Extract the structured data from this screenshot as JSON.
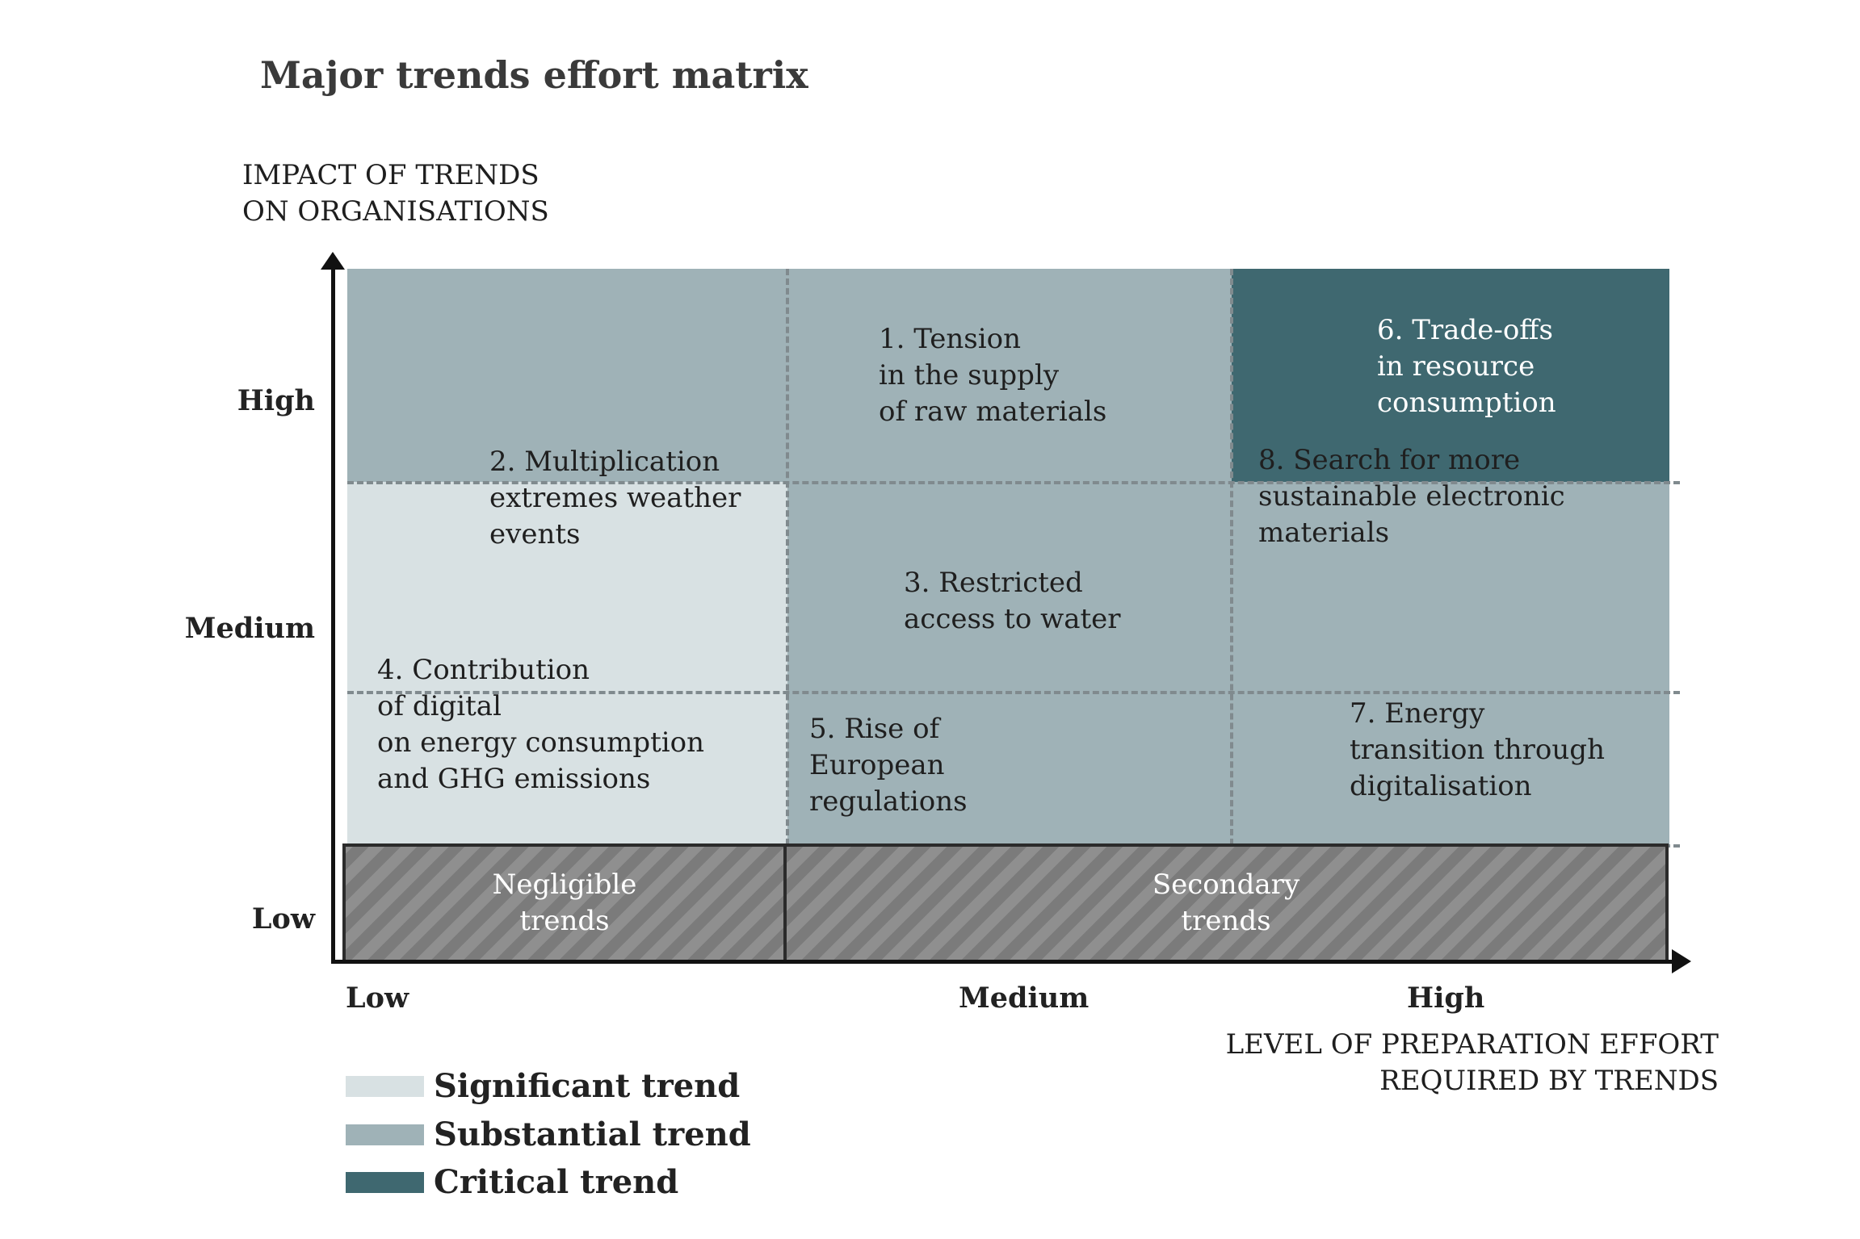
{
  "title": "Major trends effort matrix",
  "y_axis": {
    "title_lines": [
      "IMPACT OF TRENDS",
      "ON ORGANISATIONS"
    ],
    "ticks": [
      "High",
      "Medium",
      "Low"
    ]
  },
  "x_axis": {
    "title_lines": [
      "LEVEL OF PREPARATION EFFORT",
      "REQUIRED BY TRENDS"
    ],
    "ticks": [
      "Low",
      "Medium",
      "High"
    ]
  },
  "colors": {
    "significant": "#d8e1e3",
    "substantial": "#9fb2b7",
    "critical": "#3f6870"
  },
  "trends": {
    "t1": "1. Tension\nin the supply\nof raw materials",
    "t2": "2. Multiplication\nextremes weather\nevents",
    "t3": "3. Restricted\naccess to water",
    "t4": "4. Contribution\nof digital\non energy consumption\nand GHG emissions",
    "t5": "5. Rise of\nEuropean\nregulations",
    "t6": "6. Trade-offs\nin resource\nconsumption",
    "t7": "7. Energy\ntransition through\ndigitalisation",
    "t8": "8. Search for more\nsustainable electronic\nmaterials"
  },
  "low_zones": {
    "negligible": "Negligible\ntrends",
    "secondary": "Secondary\ntrends"
  },
  "legend": [
    {
      "label": "Significant trend",
      "color": "#d8e1e3"
    },
    {
      "label": "Substantial trend",
      "color": "#9fb2b7"
    },
    {
      "label": "Critical trend",
      "color": "#3f6870"
    }
  ]
}
